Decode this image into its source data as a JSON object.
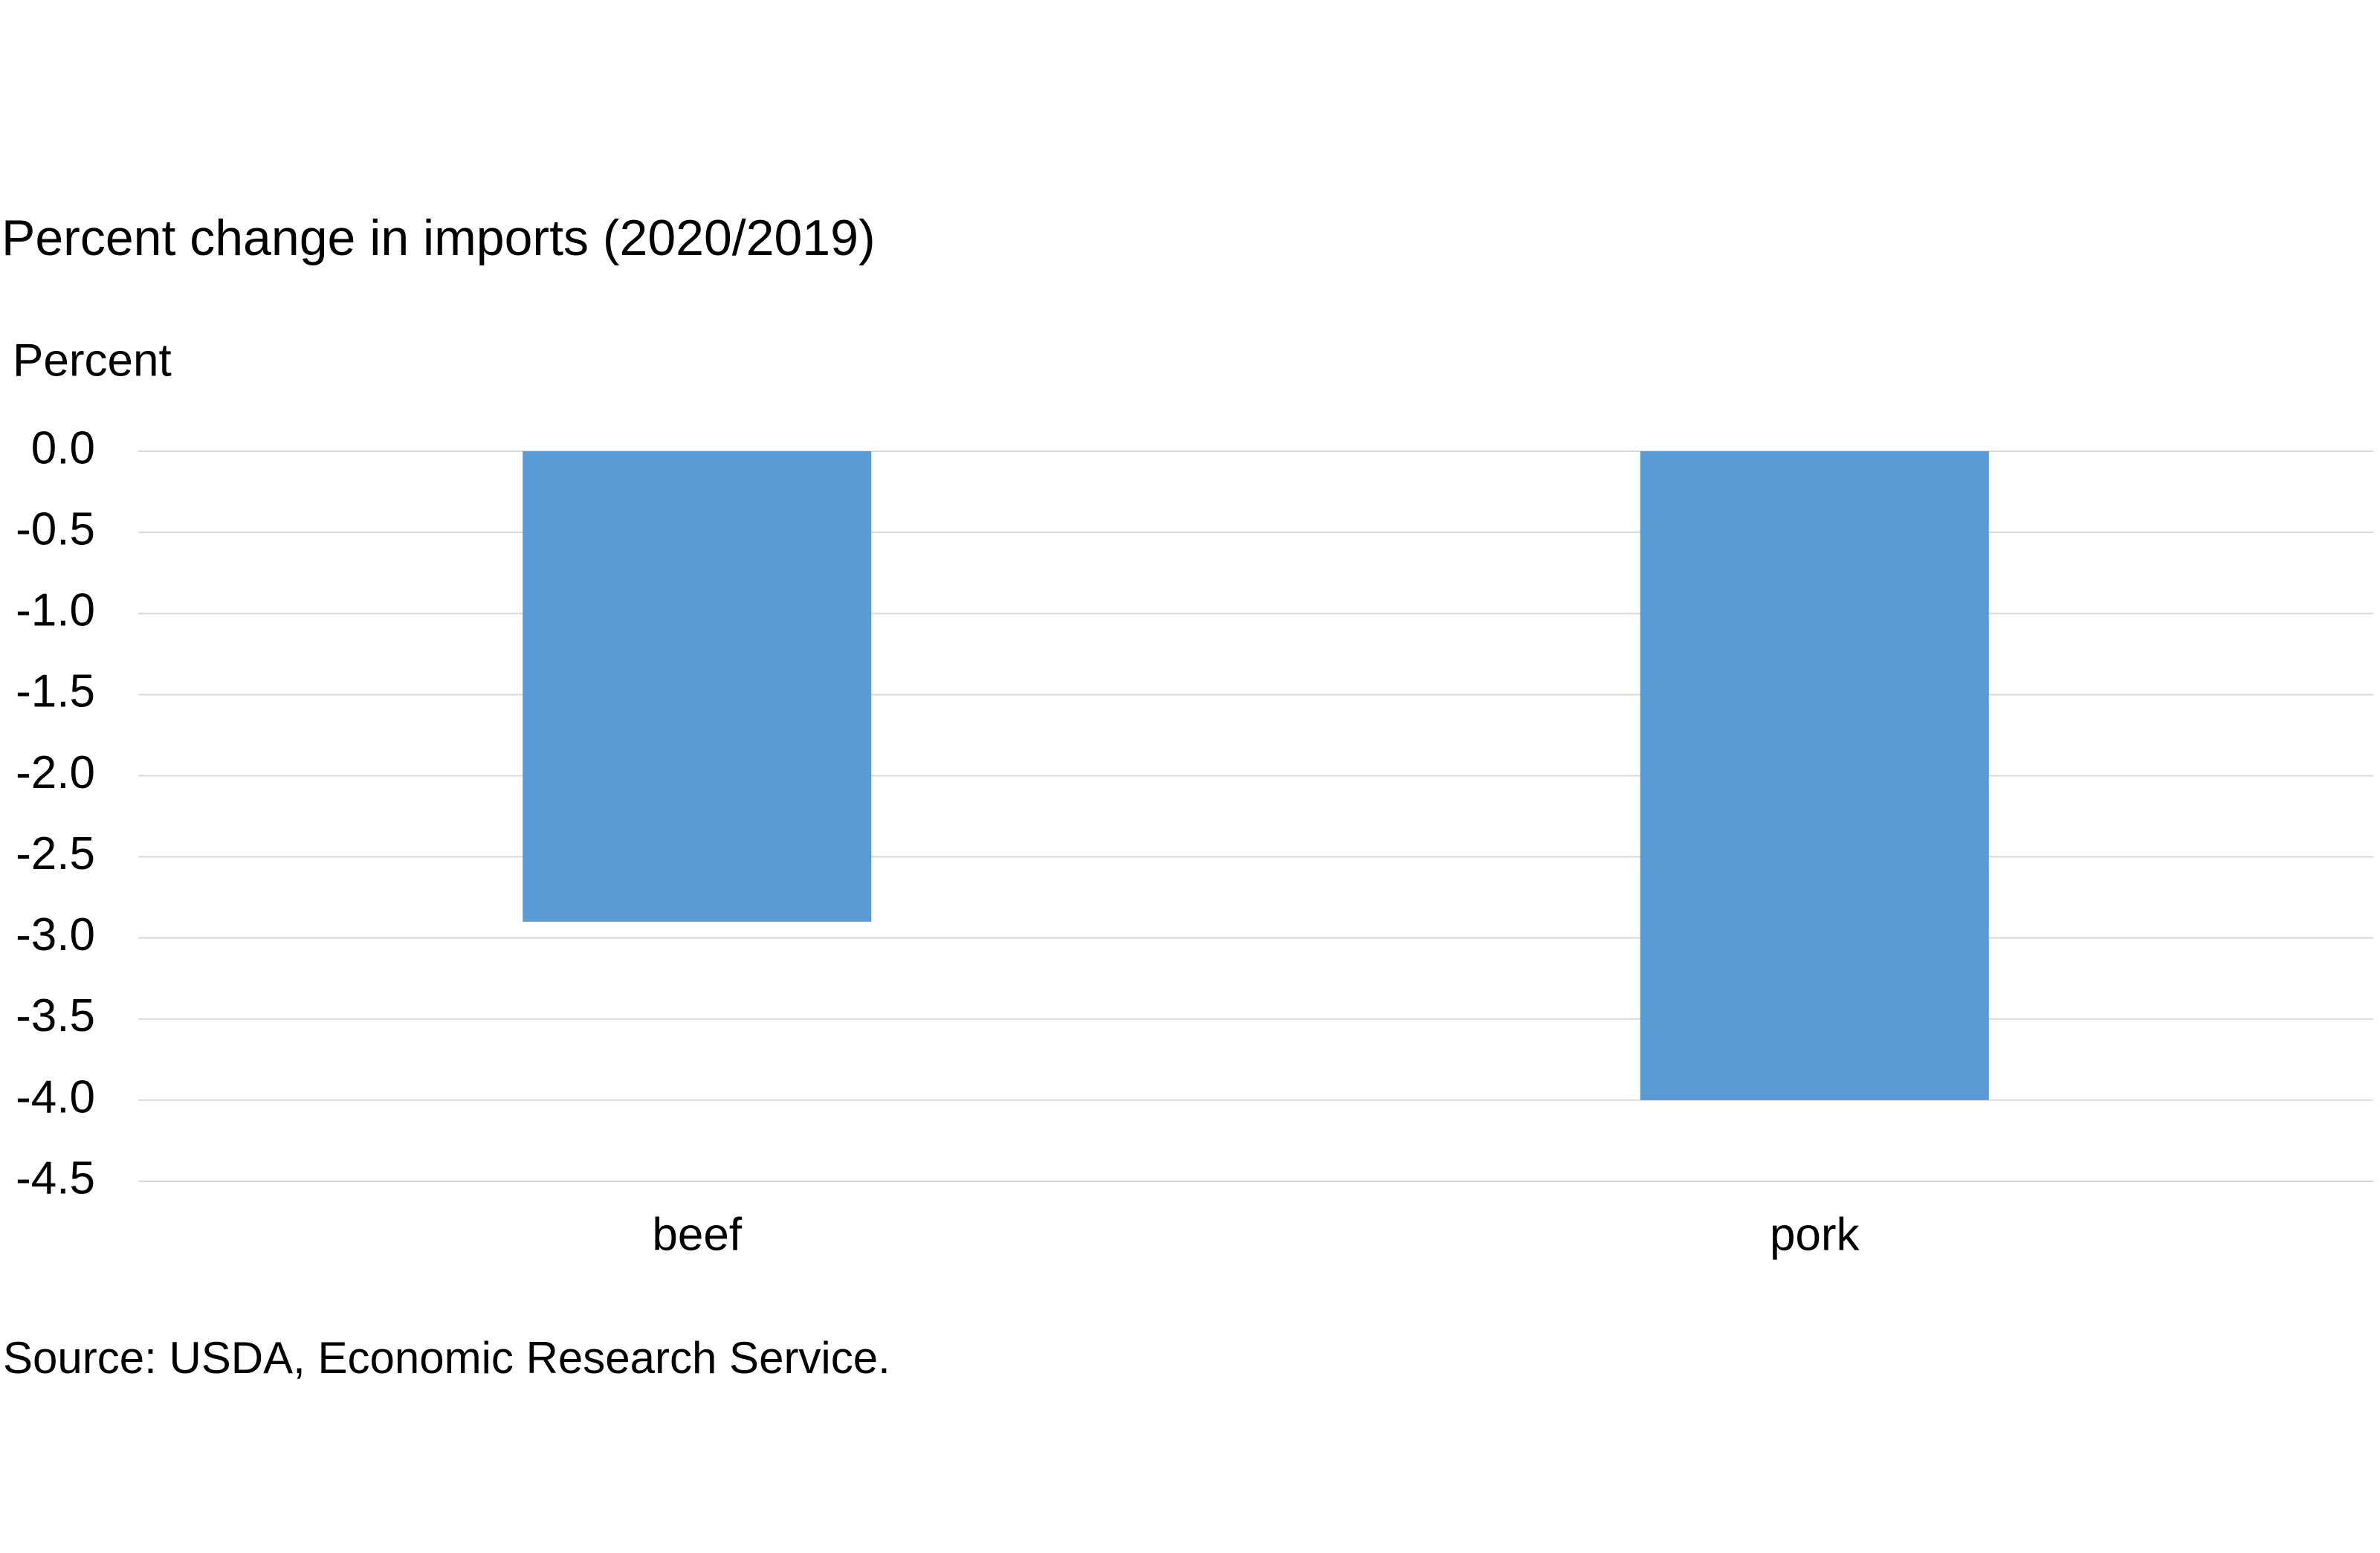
{
  "chart_data": {
    "type": "bar",
    "title": "Percent change in imports (2020/2019)",
    "y_axis_label": "Percent",
    "source": "Source: USDA, Economic Research Service.",
    "categories": [
      "beef",
      "pork"
    ],
    "values": [
      -2.9,
      -4.0
    ],
    "color": "#5b9bd5",
    "ylim": [
      -4.5,
      0
    ],
    "yticks": [
      {
        "value": 0,
        "label": "0.0"
      },
      -0.5,
      {
        "value": -1,
        "label": "-1.0"
      },
      -1.5,
      {
        "value": -2,
        "label": "-2.0"
      },
      -2.5,
      {
        "value": -3,
        "label": "-3.0"
      },
      -3.5,
      {
        "value": -4,
        "label": "-4.0"
      },
      -4.5
    ],
    "grid": true
  }
}
